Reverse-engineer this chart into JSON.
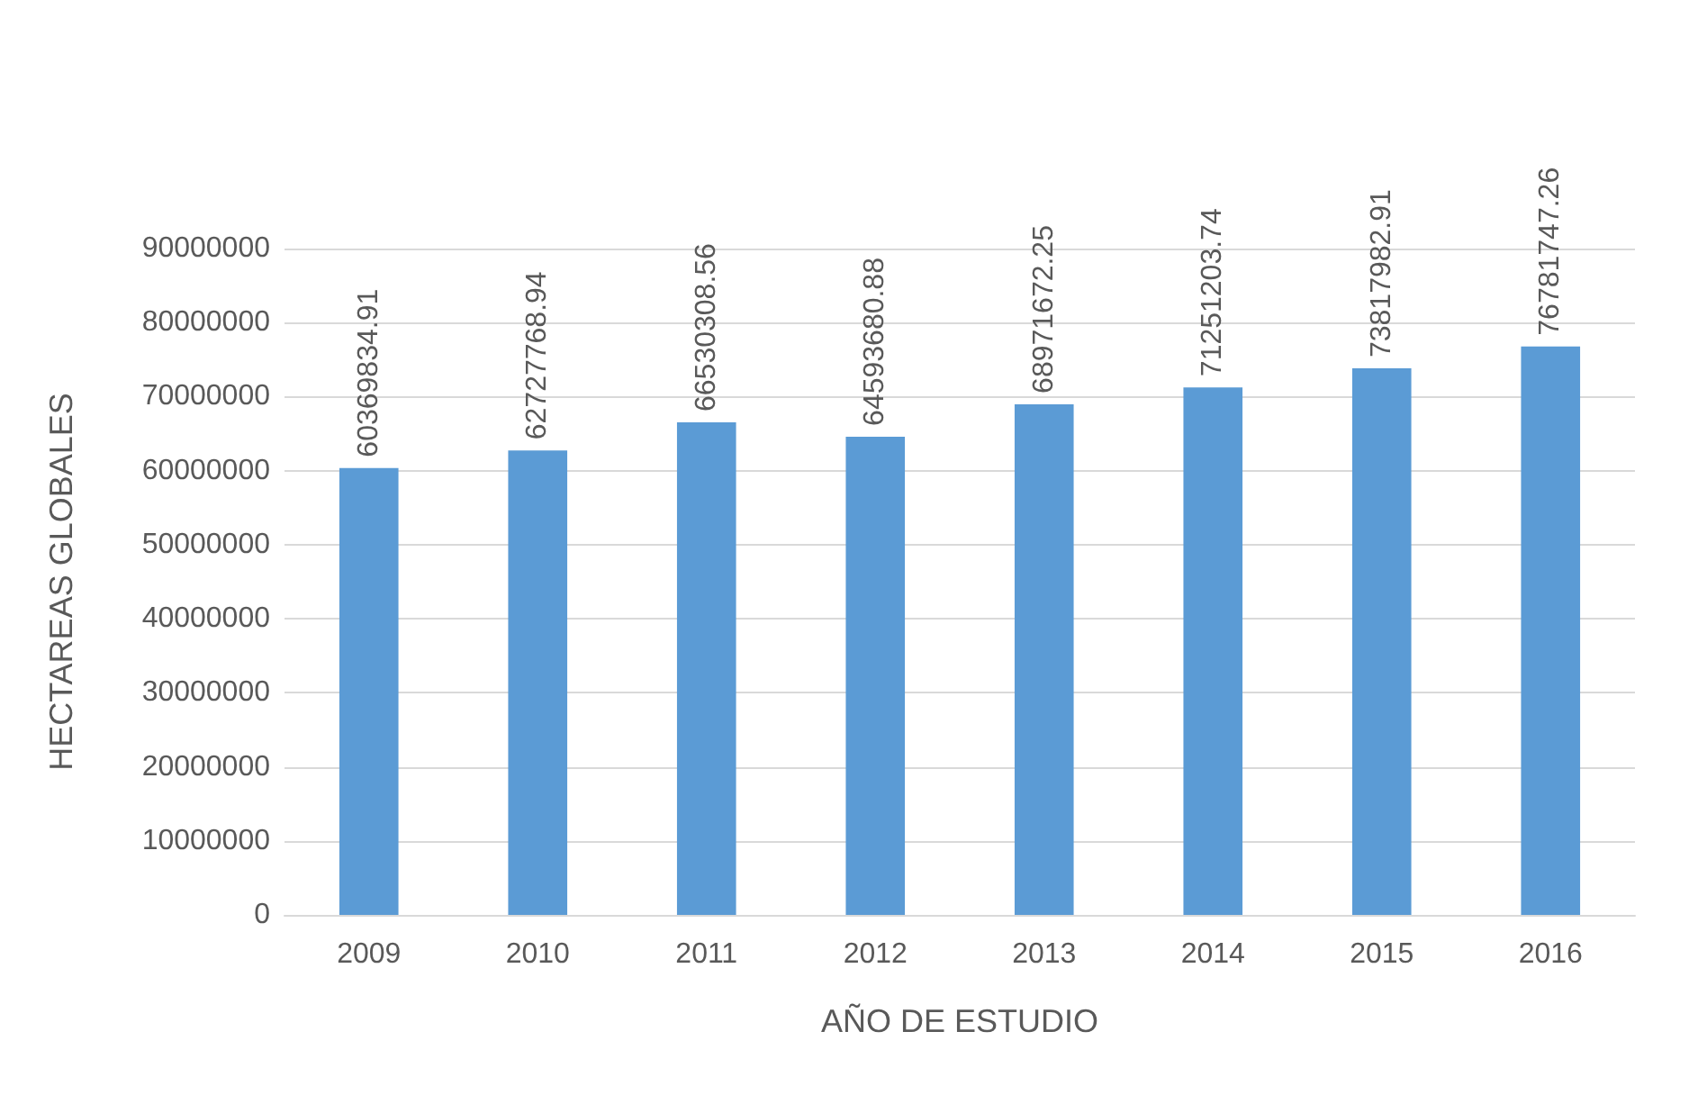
{
  "chart_data": {
    "type": "bar",
    "xlabel": "AÑO DE ESTUDIO",
    "ylabel": "HECTAREAS GLOBALES",
    "categories": [
      "2009",
      "2010",
      "2011",
      "2012",
      "2013",
      "2014",
      "2015",
      "2016"
    ],
    "values": [
      60369834.91,
      62727768.94,
      66530308.56,
      64593680.88,
      68971672.25,
      71251203.74,
      73817982.91,
      76781747.26
    ],
    "color": "#5b9bd5",
    "ylim": [
      0,
      90000000
    ],
    "yticks": [
      0,
      10000000,
      20000000,
      30000000,
      40000000,
      50000000,
      60000000,
      70000000,
      80000000,
      90000000
    ],
    "grid": "y",
    "data_labels": true
  }
}
